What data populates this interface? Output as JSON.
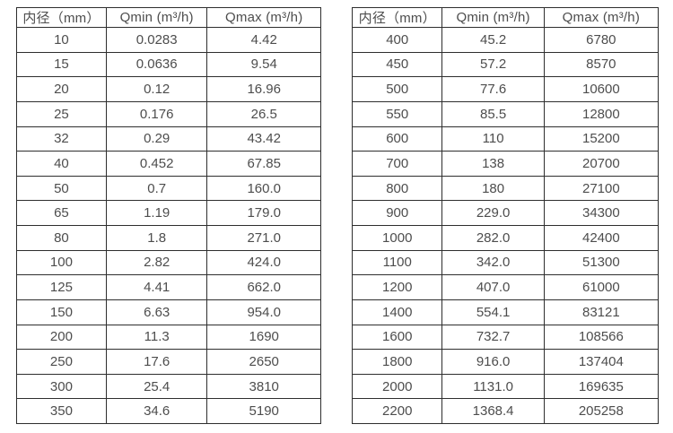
{
  "colors": {
    "background": "#ffffff",
    "border": "#2e2e2e",
    "text": "#4d4d4d"
  },
  "table_left": {
    "headers": [
      "内径（mm）",
      "Qmin (m³/h)",
      "Qmax (m³/h)"
    ],
    "rows": [
      [
        "10",
        "0.0283",
        "4.42"
      ],
      [
        "15",
        "0.0636",
        "9.54"
      ],
      [
        "20",
        "0.12",
        "16.96"
      ],
      [
        "25",
        "0.176",
        "26.5"
      ],
      [
        "32",
        "0.29",
        "43.42"
      ],
      [
        "40",
        "0.452",
        "67.85"
      ],
      [
        "50",
        "0.7",
        "160.0"
      ],
      [
        "65",
        "1.19",
        "179.0"
      ],
      [
        "80",
        "1.8",
        "271.0"
      ],
      [
        "100",
        "2.82",
        "424.0"
      ],
      [
        "125",
        "4.41",
        "662.0"
      ],
      [
        "150",
        "6.63",
        "954.0"
      ],
      [
        "200",
        "11.3",
        "1690"
      ],
      [
        "250",
        "17.6",
        "2650"
      ],
      [
        "300",
        "25.4",
        "3810"
      ],
      [
        "350",
        "34.6",
        "5190"
      ]
    ]
  },
  "table_right": {
    "headers": [
      "内径（mm）",
      "Qmin (m³/h)",
      "Qmax (m³/h)"
    ],
    "rows": [
      [
        "400",
        "45.2",
        "6780"
      ],
      [
        "450",
        "57.2",
        "8570"
      ],
      [
        "500",
        "77.6",
        "10600"
      ],
      [
        "550",
        "85.5",
        "12800"
      ],
      [
        "600",
        "110",
        "15200"
      ],
      [
        "700",
        "138",
        "20700"
      ],
      [
        "800",
        "180",
        "27100"
      ],
      [
        "900",
        "229.0",
        "34300"
      ],
      [
        "1000",
        "282.0",
        "42400"
      ],
      [
        "1100",
        "342.0",
        "51300"
      ],
      [
        "1200",
        "407.0",
        "61000"
      ],
      [
        "1400",
        "554.1",
        "83121"
      ],
      [
        "1600",
        "732.7",
        "108566"
      ],
      [
        "1800",
        "916.0",
        "137404"
      ],
      [
        "2000",
        "1131.0",
        "169635"
      ],
      [
        "2200",
        "1368.4",
        "205258"
      ]
    ]
  }
}
